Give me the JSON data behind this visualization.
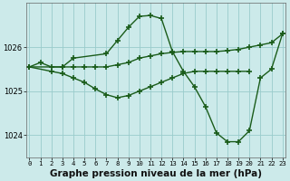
{
  "background_color": "#cceaea",
  "plot_bg_color": "#cceaea",
  "grid_color": "#99cccc",
  "line_color": "#1a5c1a",
  "xlabel": "Graphe pression niveau de la mer (hPa)",
  "xlabel_fontsize": 7.5,
  "xticks": [
    0,
    1,
    2,
    3,
    4,
    5,
    6,
    7,
    8,
    9,
    10,
    11,
    12,
    13,
    14,
    15,
    16,
    17,
    18,
    19,
    20,
    21,
    22,
    23
  ],
  "yticks": [
    1024,
    1025,
    1026
  ],
  "ylim": [
    1023.5,
    1027.0
  ],
  "xlim": [
    -0.3,
    23.3
  ],
  "lineA_x": [
    0,
    1,
    2,
    3,
    4,
    5,
    6,
    7,
    8,
    9,
    10,
    11,
    12,
    13,
    14,
    15,
    16,
    17,
    18,
    19,
    20,
    21,
    22,
    23
  ],
  "lineA_y": [
    1025.55,
    1025.65,
    1025.55,
    1025.55,
    1025.55,
    1025.55,
    1025.55,
    1025.55,
    1025.6,
    1025.65,
    1025.75,
    1025.8,
    1025.85,
    1025.88,
    1025.9,
    1025.9,
    1025.9,
    1025.9,
    1025.92,
    1025.95,
    1026.0,
    1026.05,
    1026.1,
    1026.3
  ],
  "lineB_x": [
    0,
    3,
    4,
    7,
    8,
    9,
    10,
    11,
    12,
    13,
    14,
    15,
    16,
    17,
    18,
    19,
    20,
    21,
    22,
    23
  ],
  "lineB_y": [
    1025.55,
    1025.55,
    1025.75,
    1025.85,
    1026.15,
    1026.45,
    1026.7,
    1026.72,
    1026.65,
    1025.9,
    1025.45,
    1025.1,
    1024.65,
    1024.05,
    1023.85,
    1023.85,
    1024.1,
    1025.3,
    1025.5,
    1026.3
  ],
  "lineC_x": [
    0,
    2,
    3,
    4,
    5,
    6,
    7,
    8,
    9,
    10,
    11,
    12,
    13,
    14,
    15,
    16,
    17,
    18,
    19,
    20
  ],
  "lineC_y": [
    1025.55,
    1025.45,
    1025.4,
    1025.3,
    1025.2,
    1025.05,
    1024.92,
    1024.85,
    1024.9,
    1025.0,
    1025.1,
    1025.2,
    1025.3,
    1025.4,
    1025.45,
    1025.45,
    1025.45,
    1025.45,
    1025.45,
    1025.45
  ]
}
